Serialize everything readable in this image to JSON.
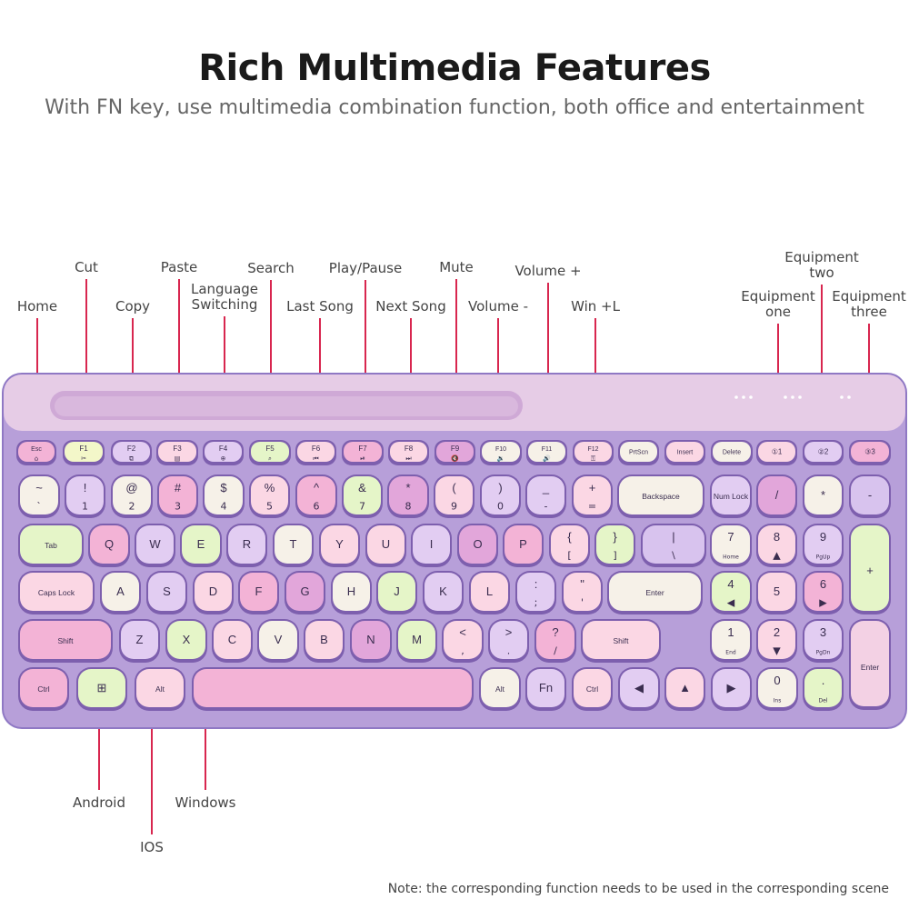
{
  "header": {
    "title": "Rich Multimedia Features",
    "subtitle": "With FN key, use multimedia combination function, both office and entertainment"
  },
  "callouts": [
    {
      "name": "home",
      "text": "Home"
    },
    {
      "name": "cut",
      "text": "Cut"
    },
    {
      "name": "copy",
      "text": "Copy"
    },
    {
      "name": "paste",
      "text": "Paste"
    },
    {
      "name": "language-switching",
      "text": "Language\nSwitching"
    },
    {
      "name": "search",
      "text": "Search"
    },
    {
      "name": "last-song",
      "text": "Last Song"
    },
    {
      "name": "play-pause",
      "text": "Play/Pause"
    },
    {
      "name": "next-song",
      "text": "Next Song"
    },
    {
      "name": "mute",
      "text": "Mute"
    },
    {
      "name": "volume-down",
      "text": "Volume -"
    },
    {
      "name": "volume-up",
      "text": "Volume +"
    },
    {
      "name": "win-l",
      "text": "Win +L"
    },
    {
      "name": "equipment-one",
      "text": "Equipment\none"
    },
    {
      "name": "equipment-two",
      "text": "Equipment\ntwo"
    },
    {
      "name": "equipment-three",
      "text": "Equipment\nthree"
    },
    {
      "name": "android",
      "text": "Android"
    },
    {
      "name": "ios",
      "text": "IOS"
    },
    {
      "name": "windows",
      "text": "Windows"
    }
  ],
  "keyboard": {
    "colors": {
      "body": "#b79fd9",
      "tray": "#e6cce6",
      "border": "#8f78c4"
    },
    "rows": [
      [
        {
          "t": "Esc",
          "s": "⌂",
          "c": "#f3b3d6"
        },
        {
          "t": "F1",
          "s": "✂",
          "c": "#f3f7c9"
        },
        {
          "t": "F2",
          "s": "⧉",
          "c": "#e2cdf2"
        },
        {
          "t": "F3",
          "s": "▤",
          "c": "#fbd7e4"
        },
        {
          "t": "F4",
          "s": "⊕",
          "c": "#e2cdf2"
        },
        {
          "t": "F5",
          "s": "⌕",
          "c": "#e5f5c8"
        },
        {
          "t": "F6",
          "s": "⏮",
          "c": "#fbd7e4"
        },
        {
          "t": "F7",
          "s": "⏯",
          "c": "#f3b3d6"
        },
        {
          "t": "F8",
          "s": "⏭",
          "c": "#fbd7e4"
        },
        {
          "t": "F9",
          "s": "🔇",
          "c": "#e2a6da"
        },
        {
          "t": "F10",
          "s": "🔉",
          "c": "#f6f1e8"
        },
        {
          "t": "F11",
          "s": "🔊",
          "c": "#f6f1e8"
        },
        {
          "t": "F12",
          "s": "⚿",
          "c": "#fbd7e4"
        },
        {
          "t": "PrtScn",
          "c": "#f6f1e8"
        },
        {
          "t": "Insert",
          "c": "#fbd7e4"
        },
        {
          "t": "Delete",
          "c": "#f6f1e8"
        },
        {
          "t": "①1",
          "c": "#fbd7e4"
        },
        {
          "t": "②2",
          "c": "#e2cdf2"
        },
        {
          "t": "③3",
          "c": "#f3b3d6"
        }
      ],
      [
        {
          "t": "~",
          "s": "`",
          "c": "#f6f1e8"
        },
        {
          "t": "!",
          "s": "1",
          "c": "#e2cdf2"
        },
        {
          "t": "@",
          "s": "2",
          "c": "#f6f1e8"
        },
        {
          "t": "#",
          "s": "3",
          "c": "#f3b3d6"
        },
        {
          "t": "$",
          "s": "4",
          "c": "#f6f1e8"
        },
        {
          "t": "%",
          "s": "5",
          "c": "#fbd7e4"
        },
        {
          "t": "^",
          "s": "6",
          "c": "#f3b3d6"
        },
        {
          "t": "&",
          "s": "7",
          "c": "#e5f5c8"
        },
        {
          "t": "*",
          "s": "8",
          "c": "#e2a6da"
        },
        {
          "t": "(",
          "s": "9",
          "c": "#fbd7e4"
        },
        {
          "t": ")",
          "s": "0",
          "c": "#e2cdf2"
        },
        {
          "t": "_",
          "s": "-",
          "c": "#e2cdf2"
        },
        {
          "t": "+",
          "s": "=",
          "c": "#fbd7e4"
        },
        {
          "t": "Backspace",
          "c": "#f6f1e8"
        },
        {
          "t": "Num Lock",
          "c": "#e2cdf2"
        },
        {
          "t": "/",
          "c": "#e2a6da"
        },
        {
          "t": "*",
          "c": "#f6f1e8"
        },
        {
          "t": "-",
          "c": "#d8c3ee"
        }
      ],
      [
        {
          "t": "Tab",
          "c": "#e5f5c8"
        },
        {
          "t": "Q",
          "c": "#f3b3d6"
        },
        {
          "t": "W",
          "c": "#e2cdf2"
        },
        {
          "t": "E",
          "c": "#e5f5c8"
        },
        {
          "t": "R",
          "c": "#e2cdf2"
        },
        {
          "t": "T",
          "c": "#f6f1e8"
        },
        {
          "t": "Y",
          "c": "#fbd7e4"
        },
        {
          "t": "U",
          "c": "#fbd7e4"
        },
        {
          "t": "I",
          "c": "#e2cdf2"
        },
        {
          "t": "O",
          "c": "#e2a6da"
        },
        {
          "t": "P",
          "c": "#f3b3d6"
        },
        {
          "t": "{",
          "s": "[",
          "c": "#fbd7e4"
        },
        {
          "t": "}",
          "s": "]",
          "c": "#e5f5c8"
        },
        {
          "t": "|",
          "s": "\\",
          "c": "#d8c3ee"
        },
        {
          "t": "7",
          "s": "Home",
          "c": "#f6f1e8"
        },
        {
          "t": "8",
          "s": "▲",
          "c": "#fbd7e4"
        },
        {
          "t": "9",
          "s": "PgUp",
          "c": "#e2cdf2"
        },
        {
          "t": "+",
          "c": "#e5f5c8"
        }
      ],
      [
        {
          "t": "Caps Lock",
          "c": "#fbd7e4"
        },
        {
          "t": "A",
          "c": "#f6f1e8"
        },
        {
          "t": "S",
          "c": "#e2cdf2"
        },
        {
          "t": "D",
          "c": "#fbd7e4"
        },
        {
          "t": "F",
          "c": "#f3b3d6"
        },
        {
          "t": "G",
          "c": "#e2a6da"
        },
        {
          "t": "H",
          "c": "#f6f1e8"
        },
        {
          "t": "J",
          "c": "#e5f5c8"
        },
        {
          "t": "K",
          "c": "#e2cdf2"
        },
        {
          "t": "L",
          "c": "#fbd7e4"
        },
        {
          "t": ":",
          "s": ";",
          "c": "#e2cdf2"
        },
        {
          "t": "\"",
          "s": "'",
          "c": "#fbd7e4"
        },
        {
          "t": "Enter",
          "c": "#f6f1e8"
        },
        {
          "t": "4",
          "s": "◀",
          "c": "#e5f5c8"
        },
        {
          "t": "5",
          "c": "#fbd7e4"
        },
        {
          "t": "6",
          "s": "▶",
          "c": "#f3b3d6"
        }
      ],
      [
        {
          "t": "Shift",
          "c": "#f3b3d6"
        },
        {
          "t": "Z",
          "c": "#e2cdf2"
        },
        {
          "t": "X",
          "c": "#e5f5c8"
        },
        {
          "t": "C",
          "c": "#fbd7e4"
        },
        {
          "t": "V",
          "c": "#f6f1e8"
        },
        {
          "t": "B",
          "c": "#fbd7e4"
        },
        {
          "t": "N",
          "c": "#e2a6da"
        },
        {
          "t": "M",
          "c": "#e5f5c8"
        },
        {
          "t": "<",
          "s": ",",
          "c": "#fbd7e4"
        },
        {
          "t": ">",
          "s": ".",
          "c": "#e2cdf2"
        },
        {
          "t": "?",
          "s": "/",
          "c": "#f3b3d6"
        },
        {
          "t": "Shift",
          "c": "#fbd7e4"
        },
        {
          "t": "1",
          "s": "End",
          "c": "#f6f1e8"
        },
        {
          "t": "2",
          "s": "▼",
          "c": "#fbd7e4"
        },
        {
          "t": "3",
          "s": "PgDn",
          "c": "#e2cdf2"
        },
        {
          "t": "Enter",
          "c": "#f3d1e4"
        }
      ],
      [
        {
          "t": "Ctrl",
          "c": "#f3b3d6"
        },
        {
          "t": "⊞",
          "c": "#e5f5c8"
        },
        {
          "t": "Alt",
          "c": "#fbd7e4"
        },
        {
          "t": "",
          "c": "#f3b3d6"
        },
        {
          "t": "Alt",
          "c": "#f6f1e8"
        },
        {
          "t": "Fn",
          "c": "#e2cdf2"
        },
        {
          "t": "Ctrl",
          "c": "#fbd7e4"
        },
        {
          "t": "◀",
          "c": "#e2cdf2"
        },
        {
          "t": "▲",
          "c": "#fbd7e4"
        },
        {
          "t": "▶",
          "c": "#e2cdf2"
        },
        {
          "t": "0",
          "s": "Ins",
          "c": "#f6f1e8"
        },
        {
          "t": ".",
          "s": "Del",
          "c": "#e5f5c8"
        }
      ]
    ]
  },
  "note": "Note: the corresponding function needs to be used in the corresponding scene"
}
